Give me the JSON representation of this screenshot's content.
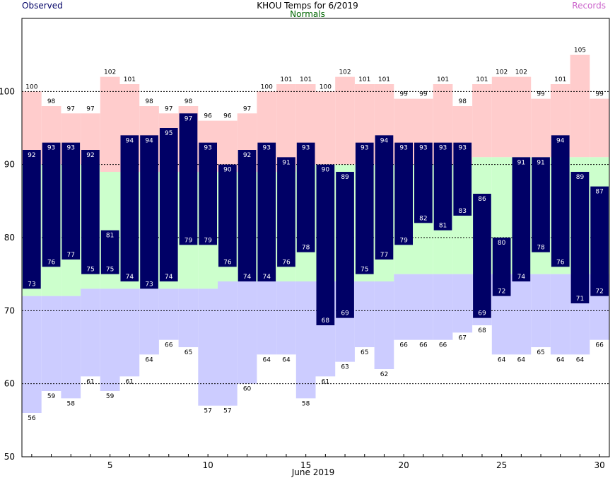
{
  "header": {
    "title": "KHOU Temps for 6/2019",
    "observed_label": "Observed",
    "normals_label": "Normals",
    "records_label": "Records"
  },
  "colors": {
    "observed": "#000066",
    "normals_band": "#ccffcc",
    "record_high_band": "#ffcccc",
    "record_low_band": "#ccccff",
    "normals_text": "#006600",
    "records_text": "#cc66cc",
    "observed_text": "#000066"
  },
  "chart_data": {
    "type": "bar",
    "title": "KHOU Temps for 6/2019",
    "xlabel": "June 2019",
    "ylabel": "",
    "x": [
      1,
      2,
      3,
      4,
      5,
      6,
      7,
      8,
      9,
      10,
      11,
      12,
      13,
      14,
      15,
      16,
      17,
      18,
      19,
      20,
      21,
      22,
      23,
      24,
      25,
      26,
      27,
      28,
      29,
      30
    ],
    "xticks": [
      5,
      10,
      15,
      20,
      25,
      30
    ],
    "ylim": [
      50,
      110
    ],
    "yticks": [
      50,
      60,
      70,
      80,
      90,
      100
    ],
    "grid": "horizontal dashed at 60, 70, 80, 90, 100",
    "series": [
      {
        "name": "Observed",
        "kind": "high",
        "values": [
          92,
          93,
          93,
          92,
          81,
          94,
          94,
          95,
          97,
          93,
          90,
          92,
          93,
          91,
          93,
          90,
          89,
          93,
          94,
          93,
          93,
          93,
          93,
          86,
          80,
          91,
          91,
          94,
          89,
          87
        ]
      },
      {
        "name": "Observed",
        "kind": "low",
        "values": [
          73,
          76,
          77,
          75,
          75,
          74,
          73,
          74,
          79,
          79,
          76,
          74,
          74,
          76,
          78,
          68,
          69,
          75,
          77,
          79,
          82,
          81,
          83,
          69,
          72,
          74,
          78,
          76,
          71,
          72
        ]
      },
      {
        "name": "Normals",
        "kind": "high",
        "values": [
          90,
          90,
          90,
          90,
          89,
          89,
          89,
          89,
          89,
          89,
          89,
          89,
          89,
          89,
          90,
          90,
          90,
          90,
          90,
          90,
          90,
          90,
          90,
          91,
          91,
          91,
          91,
          91,
          91,
          91
        ]
      },
      {
        "name": "Normals",
        "kind": "low",
        "values": [
          72,
          72,
          72,
          73,
          73,
          73,
          73,
          73,
          73,
          73,
          74,
          74,
          74,
          74,
          74,
          74,
          74,
          74,
          74,
          75,
          75,
          75,
          75,
          75,
          75,
          75,
          75,
          75,
          75,
          75
        ]
      },
      {
        "name": "Records",
        "kind": "high",
        "values": [
          100,
          98,
          97,
          97,
          102,
          101,
          98,
          97,
          98,
          96,
          96,
          97,
          100,
          101,
          101,
          100,
          102,
          101,
          101,
          99,
          99,
          101,
          98,
          101,
          102,
          102,
          99,
          101,
          105,
          99
        ]
      },
      {
        "name": "Records",
        "kind": "low",
        "values": [
          56,
          59,
          58,
          61,
          59,
          61,
          64,
          66,
          65,
          57,
          57,
          60,
          64,
          64,
          58,
          61,
          63,
          65,
          62,
          66,
          66,
          66,
          67,
          68,
          64,
          64,
          65,
          64,
          64,
          66
        ]
      }
    ]
  }
}
